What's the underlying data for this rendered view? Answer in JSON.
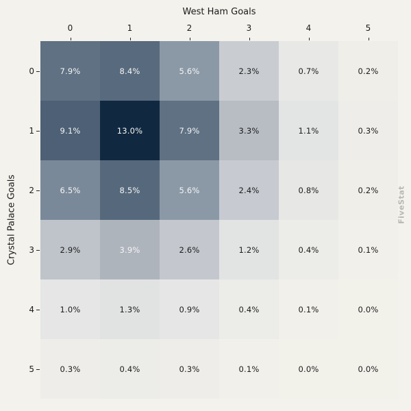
{
  "chart_data": {
    "type": "heatmap",
    "title": "",
    "xlabel": "West Ham Goals",
    "ylabel": "Crystal Palace Goals",
    "x_tick_labels": [
      "0",
      "1",
      "2",
      "3",
      "4",
      "5"
    ],
    "y_tick_labels": [
      "0",
      "1",
      "2",
      "3",
      "4",
      "5"
    ],
    "values_percent": [
      [
        7.9,
        8.4,
        5.6,
        2.3,
        0.7,
        0.2
      ],
      [
        9.1,
        13.0,
        7.9,
        3.3,
        1.1,
        0.3
      ],
      [
        6.5,
        8.5,
        5.6,
        2.4,
        0.8,
        0.2
      ],
      [
        2.9,
        3.9,
        2.6,
        1.2,
        0.4,
        0.1
      ],
      [
        1.0,
        1.3,
        0.9,
        0.4,
        0.1,
        0.0
      ],
      [
        0.3,
        0.4,
        0.3,
        0.1,
        0.0,
        0.0
      ]
    ],
    "cell_label_suffix": "%",
    "axis_ranges": {
      "x": [
        0,
        5
      ],
      "y": [
        0,
        5
      ]
    },
    "grid": false,
    "legend": false,
    "colors": {
      "background": "#f3f2ec",
      "colormap_stops": [
        [
          0.0,
          "#f2f1ea"
        ],
        [
          0.7,
          "#e8e8e7"
        ],
        [
          1.3,
          "#e1e3e3"
        ],
        [
          2.3,
          "#c9cdd2"
        ],
        [
          3.9,
          "#aeb4bc"
        ],
        [
          5.6,
          "#8b99a7"
        ],
        [
          7.9,
          "#5f7183"
        ],
        [
          9.1,
          "#4d6075"
        ],
        [
          13.0,
          "#112940"
        ]
      ],
      "text_dark": "#1b1b1b",
      "text_light": "#f5f5f5",
      "light_text_threshold": 3.5,
      "tick_color": "#262626"
    }
  },
  "watermark": {
    "label": "FiveStat",
    "color": "#b8b8b2"
  }
}
